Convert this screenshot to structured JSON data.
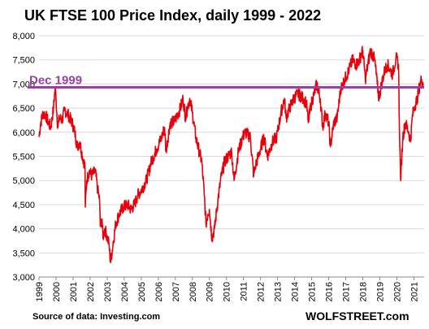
{
  "chart_data": {
    "type": "line",
    "title": "UK FTSE 100 Price Index, daily 1999 - 2022",
    "xlabel": "",
    "ylabel": "",
    "xlim": [
      1999,
      2021.6
    ],
    "ylim": [
      3000,
      8000
    ],
    "y_ticks": [
      "3,000",
      "3,500",
      "4,000",
      "4,500",
      "5,000",
      "5,500",
      "6,000",
      "6,500",
      "7,000",
      "7,500",
      "8,000"
    ],
    "y_tick_values": [
      3000,
      3500,
      4000,
      4500,
      5000,
      5500,
      6000,
      6500,
      7000,
      7500,
      8000
    ],
    "x_ticks": [
      "1999",
      "2000",
      "2001",
      "2002",
      "2003",
      "2004",
      "2005",
      "2006",
      "2007",
      "2008",
      "2009",
      "2010",
      "2011",
      "2012",
      "2013",
      "2014",
      "2015",
      "2016",
      "2017",
      "2018",
      "2019",
      "2020",
      "2021"
    ],
    "grid": true,
    "line_color": "#e8000b",
    "reference_line": {
      "label": "Dec 1999",
      "value": 6930,
      "color": "#9b3fa6"
    },
    "series": [
      {
        "name": "",
        "x": [
          1999.0,
          1999.1,
          1999.25,
          1999.4,
          1999.55,
          1999.7,
          1999.85,
          1999.95,
          2000.0,
          2000.1,
          2000.2,
          2000.35,
          2000.5,
          2000.65,
          2000.8,
          2000.95,
          2001.1,
          2001.25,
          2001.4,
          2001.55,
          2001.7,
          2001.72,
          2001.8,
          2001.95,
          2002.1,
          2002.3,
          2002.45,
          2002.55,
          2002.6,
          2002.7,
          2002.75,
          2002.85,
          2002.95,
          2003.1,
          2003.2,
          2003.35,
          2003.5,
          2003.7,
          2003.95,
          2004.2,
          2004.4,
          2004.6,
          2004.8,
          2005.0,
          2005.3,
          2005.6,
          2005.9,
          2006.2,
          2006.37,
          2006.45,
          2006.7,
          2006.95,
          2007.3,
          2007.45,
          2007.6,
          2007.7,
          2007.85,
          2008.0,
          2008.2,
          2008.4,
          2008.55,
          2008.7,
          2008.8,
          2008.9,
          2009.0,
          2009.15,
          2009.3,
          2009.5,
          2009.7,
          2009.9,
          2010.1,
          2010.3,
          2010.45,
          2010.7,
          2010.95,
          2011.1,
          2011.4,
          2011.6,
          2011.7,
          2011.95,
          2012.2,
          2012.4,
          2012.7,
          2012.95,
          2013.2,
          2013.4,
          2013.5,
          2013.7,
          2013.95,
          2014.2,
          2014.5,
          2014.7,
          2014.8,
          2014.95,
          2015.3,
          2015.5,
          2015.65,
          2015.8,
          2016.0,
          2016.1,
          2016.3,
          2016.5,
          2016.7,
          2016.95,
          2017.2,
          2017.4,
          2017.6,
          2017.8,
          2018.0,
          2018.15,
          2018.3,
          2018.45,
          2018.7,
          2018.85,
          2018.95,
          2019.1,
          2019.3,
          2019.45,
          2019.6,
          2019.75,
          2019.95,
          2020.1,
          2020.15,
          2020.22,
          2020.35,
          2020.5,
          2020.7,
          2020.8,
          2020.9,
          2021.0,
          2021.2,
          2021.35,
          2021.45,
          2021.55
        ],
        "values": [
          5900,
          6200,
          6400,
          6350,
          6200,
          6100,
          6500,
          6930,
          6700,
          6100,
          6300,
          6250,
          6450,
          6400,
          6300,
          6200,
          6000,
          5700,
          5800,
          5500,
          5300,
          4450,
          5000,
          5200,
          5100,
          5200,
          4800,
          4600,
          4050,
          4200,
          3800,
          4000,
          3900,
          3700,
          3300,
          3700,
          4100,
          4300,
          4450,
          4500,
          4400,
          4500,
          4700,
          4800,
          5000,
          5400,
          5650,
          5900,
          6100,
          5600,
          6200,
          6220,
          6500,
          6700,
          6300,
          6500,
          6700,
          6400,
          5900,
          5600,
          5400,
          4700,
          4100,
          4300,
          4400,
          3800,
          4000,
          4600,
          5100,
          5400,
          5500,
          5600,
          5000,
          5600,
          5900,
          6000,
          5900,
          5100,
          5300,
          5600,
          5900,
          5500,
          5800,
          5900,
          6400,
          6700,
          6300,
          6500,
          6700,
          6800,
          6700,
          6600,
          6200,
          6550,
          7000,
          6700,
          6100,
          6400,
          6200,
          5700,
          6200,
          6300,
          6900,
          7100,
          7300,
          7500,
          7400,
          7500,
          7700,
          7100,
          7400,
          7700,
          7500,
          7000,
          6700,
          7000,
          7300,
          7400,
          7300,
          7200,
          7550,
          7400,
          6100,
          5000,
          5900,
          6200,
          6000,
          5800,
          6300,
          6500,
          6700,
          7000,
          7100,
          7000
        ]
      }
    ],
    "source_text": "Source of data: Investing.com",
    "brand": "WOLFSTREET.com"
  }
}
